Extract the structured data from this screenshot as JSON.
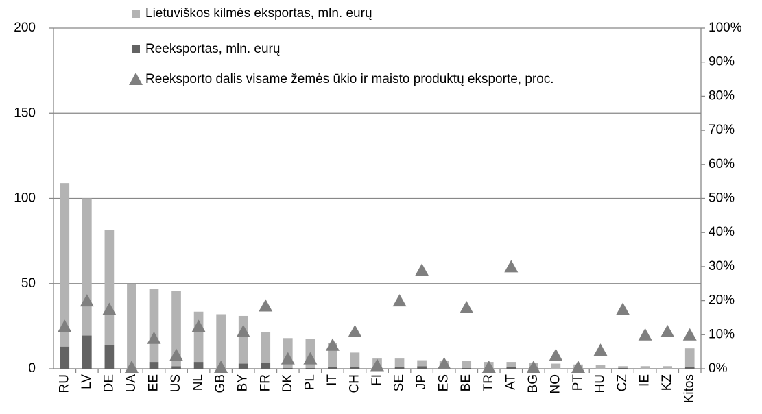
{
  "chart_data": {
    "type": "bar",
    "stacked": true,
    "categories": [
      "RU",
      "LV",
      "DE",
      "UA",
      "EE",
      "US",
      "NL",
      "GB",
      "BY",
      "FR",
      "DK",
      "PL",
      "IT",
      "CH",
      "FI",
      "SE",
      "JP",
      "ES",
      "BE",
      "TR",
      "AT",
      "BG",
      "NO",
      "PT",
      "HU",
      "CZ",
      "IE",
      "KZ",
      "Kitos"
    ],
    "series": [
      {
        "name": "Lietuviškos kilmės eksportas, mln. eurų",
        "color": "#b3b3b3",
        "values": [
          96,
          80.5,
          67.5,
          49.5,
          43,
          44,
          29.5,
          32,
          28,
          18,
          17.5,
          17,
          14,
          8.5,
          6,
          5,
          3.5,
          4.5,
          4,
          4,
          3,
          3.5,
          3,
          2.5,
          2,
          1,
          1.5,
          1.5,
          11
        ]
      },
      {
        "name": "Reeksportas, mln. eurų",
        "color": "#636363",
        "values": [
          13,
          19.5,
          14,
          0,
          4,
          1.5,
          4,
          0,
          3,
          3.5,
          0.5,
          0.5,
          1,
          1,
          0,
          1,
          1.5,
          0,
          0.5,
          0,
          1,
          0,
          0,
          0,
          0,
          0.5,
          0,
          0,
          1
        ]
      },
      {
        "name": "Reeksporto dalis visame žemės ūkio ir maisto produktų eksporte, proc.",
        "color": "#7f7f7f",
        "type": "scatter",
        "marker": "triangle",
        "axis": "y2",
        "values": [
          12,
          19.5,
          17,
          0,
          8.5,
          3.5,
          12,
          0,
          10.5,
          18,
          2.5,
          2.5,
          6.5,
          10.5,
          0.5,
          19.5,
          28.5,
          1,
          17.5,
          0,
          29.5,
          0,
          3.5,
          0,
          5,
          17,
          9.5,
          10.5,
          9.5
        ]
      }
    ],
    "ylim": [
      0,
      200
    ],
    "yticks": [
      0,
      50,
      100,
      150,
      200
    ],
    "y2lim": [
      0,
      100
    ],
    "y2ticks": [
      {
        "value": 0,
        "label": "0%"
      },
      {
        "value": 10,
        "label": "10%"
      },
      {
        "value": 20,
        "label": "20%"
      },
      {
        "value": 30,
        "label": "30%"
      },
      {
        "value": 40,
        "label": "40%"
      },
      {
        "value": 50,
        "label": "50%"
      },
      {
        "value": 60,
        "label": "60%"
      },
      {
        "value": 70,
        "label": "70%"
      },
      {
        "value": 80,
        "label": "80%"
      },
      {
        "value": 90,
        "label": "90%"
      },
      {
        "value": 100,
        "label": "100%"
      }
    ],
    "grid": true
  }
}
